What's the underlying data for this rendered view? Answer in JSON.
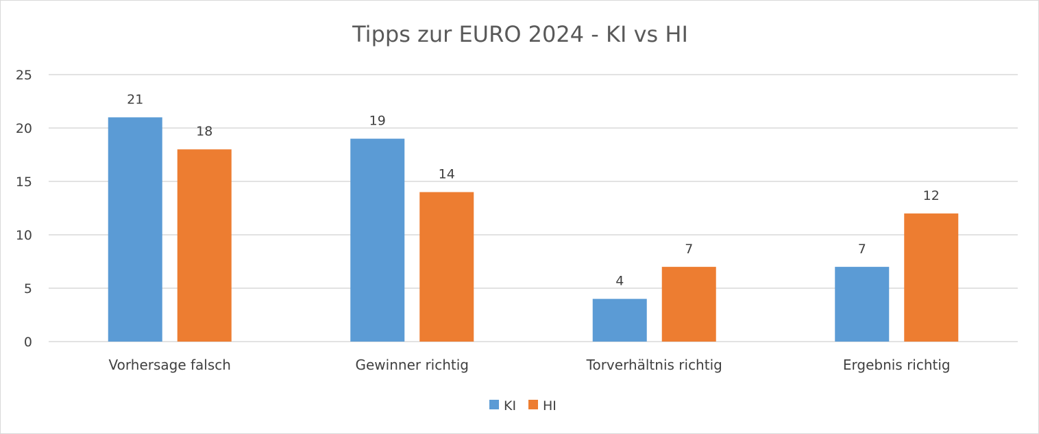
{
  "chart_data": {
    "type": "bar",
    "title": "Tipps zur EURO 2024 - KI vs HI",
    "xlabel": "",
    "ylabel": "",
    "categories": [
      "Vorhersage falsch",
      "Gewinner richtig",
      "Torverhältnis richtig",
      "Ergebnis richtig"
    ],
    "series": [
      {
        "name": "KI",
        "values": [
          21,
          19,
          4,
          7
        ],
        "color": "#5b9bd5"
      },
      {
        "name": "HI",
        "values": [
          18,
          14,
          7,
          12
        ],
        "color": "#ed7d31"
      }
    ],
    "ylim": [
      0,
      25
    ],
    "yticks": [
      "0",
      "5",
      "10",
      "15",
      "20",
      "25"
    ],
    "ytick_values": [
      0,
      5,
      10,
      15,
      20,
      25
    ],
    "grid": true,
    "legend_position": "bottom",
    "data_labels": true
  }
}
